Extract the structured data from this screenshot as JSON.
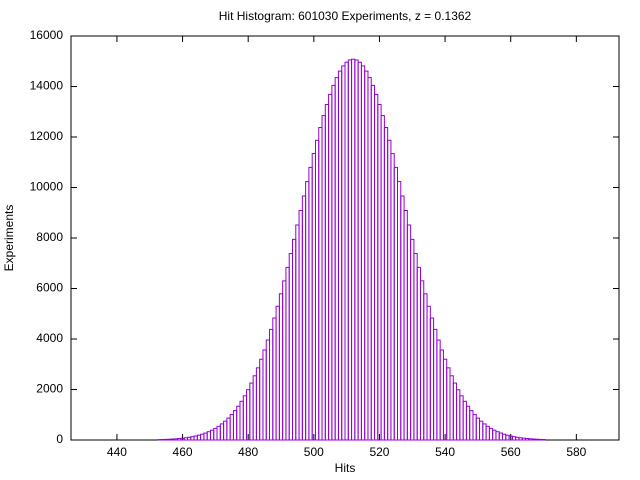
{
  "chart_data": {
    "type": "histogram",
    "title": "Hit Histogram: 601030 Experiments, z = 0.1362",
    "x_label": "Hits",
    "y_label": "Experiments",
    "color": "#9400d3",
    "bins": [
      452.5,
      453.5,
      454.5,
      455.5,
      456.5,
      457.5,
      458.5,
      459.5,
      460.5,
      461.5,
      462.5,
      463.5,
      464.5,
      465.5,
      466.5,
      467.5,
      468.5,
      469.5,
      470.5,
      471.5,
      472.5,
      473.5,
      474.5,
      475.5,
      476.5,
      477.5,
      478.5,
      479.5,
      480.5,
      481.5,
      482.5,
      483.5,
      484.5,
      485.5,
      486.5,
      487.5,
      488.5,
      489.5,
      490.5,
      491.5,
      492.5,
      493.5,
      494.5,
      495.5,
      496.5,
      497.5,
      498.5,
      499.5,
      500.5,
      501.5,
      502.5,
      503.5,
      504.5,
      505.5,
      506.5,
      507.5,
      508.5,
      509.5,
      510.5,
      511.5,
      512.5,
      513.5,
      514.5,
      515.5,
      516.5,
      517.5,
      518.5,
      519.5,
      520.5,
      521.5,
      522.5,
      523.5,
      524.5,
      525.5,
      526.5,
      527.5,
      528.5,
      529.5,
      530.5,
      531.5,
      532.5,
      533.5,
      534.5,
      535.5,
      536.5,
      537.5,
      538.5,
      539.5,
      540.5,
      541.5,
      542.5,
      543.5,
      544.5,
      545.5,
      546.5,
      547.5,
      548.5,
      549.5,
      550.5,
      551.5,
      552.5,
      553.5,
      554.5,
      555.5,
      556.5,
      557.5,
      558.5,
      559.5,
      560.5,
      561.5,
      562.5,
      563.5,
      564.5,
      565.5,
      566.5,
      567.5,
      568.5,
      569.5,
      570.5
    ],
    "values": [
      15,
      19,
      24,
      30,
      38,
      47,
      58,
      72,
      88,
      107,
      131,
      158,
      191,
      229,
      275,
      328,
      388,
      460,
      542,
      637,
      745,
      867,
      1006,
      1162,
      1337,
      1533,
      1749,
      1990,
      2255,
      2543,
      2858,
      3199,
      3567,
      3959,
      4381,
      4831,
      5297,
      5789,
      6302,
      6836,
      7385,
      7946,
      8515,
      9089,
      9664,
      10235,
      10796,
      11343,
      11870,
      12376,
      12848,
      13287,
      13687,
      14044,
      14353,
      14610,
      14814,
      14961,
      15050,
      15080,
      15050,
      14961,
      14814,
      14610,
      14353,
      14044,
      13687,
      13287,
      12848,
      12376,
      11870,
      11343,
      10796,
      10235,
      9664,
      9089,
      8515,
      7946,
      7385,
      6836,
      6302,
      5789,
      5297,
      4831,
      4381,
      3959,
      3567,
      3199,
      2858,
      2543,
      2255,
      1990,
      1749,
      1533,
      1337,
      1162,
      1006,
      867,
      745,
      637,
      542,
      460,
      388,
      328,
      275,
      229,
      191,
      158,
      131,
      107,
      88,
      72,
      58,
      47,
      38,
      30,
      24,
      19
    ],
    "xlim": [
      426,
      593
    ],
    "xticks": [
      440,
      460,
      480,
      500,
      520,
      540,
      560,
      580
    ],
    "ylim": [
      0,
      16000
    ],
    "yticks": [
      0,
      2000,
      4000,
      6000,
      8000,
      10000,
      12000,
      14000,
      16000
    ]
  }
}
